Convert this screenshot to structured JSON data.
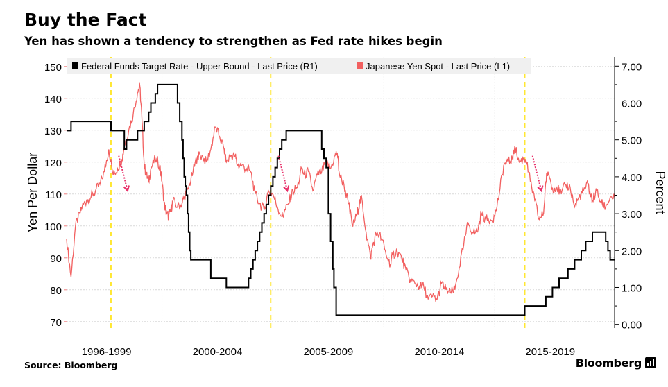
{
  "header": {
    "title": "Buy the Fact",
    "subtitle": "Yen has shown a tendency to strengthen as Fed rate hikes begin"
  },
  "footer": {
    "source": "Source: Bloomberg",
    "brand": "Bloomberg",
    "brand_icon": "bloomberg-terminal-icon"
  },
  "colors": {
    "fed_series": "#000000",
    "yen_series": "#f26060",
    "hike_marker": "#ffe733",
    "arrow": "#e8306a",
    "grid": "#d9d9d9",
    "legend_bg": "#f0f0f0"
  },
  "chart_data": {
    "type": "line",
    "x_range": [
      1995.3,
      2020.0
    ],
    "x_group_labels": [
      {
        "label": "1996-1999",
        "center": 1997.1
      },
      {
        "label": "2000-2004",
        "center": 2002.1
      },
      {
        "label": "2005-2009",
        "center": 2007.1
      },
      {
        "label": "2010-2014",
        "center": 2012.1
      },
      {
        "label": "2015-2019",
        "center": 2017.1
      }
    ],
    "y_left": {
      "label": "Yen Per Dollar",
      "range": [
        68,
        153
      ],
      "ticks": [
        "70",
        "80",
        "90",
        "100",
        "110",
        "120",
        "130",
        "140",
        "150"
      ]
    },
    "y_right": {
      "label": "Percent",
      "range": [
        -0.1,
        7.25
      ],
      "ticks": [
        "0.00",
        "1.00",
        "2.00",
        "3.00",
        "4.00",
        "5.00",
        "6.00",
        "7.00"
      ]
    },
    "legend": {
      "position": "top",
      "entries": [
        {
          "name": "Federal Funds Target Rate - Upper Bound - Last Price (R1)",
          "series": "fed"
        },
        {
          "name": "Japanese Yen Spot - Last Price (L1)",
          "series": "yen"
        }
      ]
    },
    "series": {
      "fed": {
        "name": "Federal Funds Target Rate - Upper Bound - Last Price (R1)",
        "axis": "right",
        "step": true,
        "points": [
          [
            1995.3,
            5.25
          ],
          [
            1995.5,
            5.5
          ],
          [
            1997.2,
            5.5
          ],
          [
            1997.3,
            5.25
          ],
          [
            1997.9,
            4.75
          ],
          [
            1998.0,
            5.0
          ],
          [
            1998.5,
            5.25
          ],
          [
            1998.8,
            5.5
          ],
          [
            1999.0,
            5.75
          ],
          [
            1999.1,
            6.0
          ],
          [
            1999.3,
            6.25
          ],
          [
            1999.4,
            6.5
          ],
          [
            2000.2,
            6.5
          ],
          [
            2000.3,
            6.0
          ],
          [
            2000.4,
            5.5
          ],
          [
            2000.5,
            5.0
          ],
          [
            2000.55,
            4.5
          ],
          [
            2000.6,
            4.0
          ],
          [
            2000.65,
            3.75
          ],
          [
            2000.7,
            3.5
          ],
          [
            2000.75,
            3.0
          ],
          [
            2000.8,
            2.5
          ],
          [
            2000.85,
            2.0
          ],
          [
            2000.9,
            1.75
          ],
          [
            2001.8,
            1.25
          ],
          [
            2002.5,
            1.0
          ],
          [
            2003.5,
            1.25
          ],
          [
            2003.6,
            1.5
          ],
          [
            2003.7,
            1.75
          ],
          [
            2003.8,
            2.0
          ],
          [
            2003.9,
            2.25
          ],
          [
            2004.0,
            2.5
          ],
          [
            2004.1,
            2.75
          ],
          [
            2004.2,
            3.0
          ],
          [
            2004.3,
            3.25
          ],
          [
            2004.4,
            3.5
          ],
          [
            2004.5,
            3.75
          ],
          [
            2004.6,
            4.0
          ],
          [
            2004.7,
            4.25
          ],
          [
            2004.8,
            4.5
          ],
          [
            2004.9,
            4.75
          ],
          [
            2005.0,
            5.0
          ],
          [
            2005.2,
            5.25
          ],
          [
            2006.7,
            5.25
          ],
          [
            2006.8,
            4.75
          ],
          [
            2006.9,
            4.5
          ],
          [
            2007.0,
            4.25
          ],
          [
            2007.1,
            3.0
          ],
          [
            2007.2,
            2.25
          ],
          [
            2007.3,
            1.5
          ],
          [
            2007.35,
            1.0
          ],
          [
            2007.45,
            0.25
          ],
          [
            2015.9,
            0.25
          ],
          [
            2015.95,
            0.5
          ],
          [
            2016.9,
            0.75
          ],
          [
            2017.2,
            1.0
          ],
          [
            2017.5,
            1.25
          ],
          [
            2017.9,
            1.5
          ],
          [
            2018.2,
            1.75
          ],
          [
            2018.5,
            2.0
          ],
          [
            2018.7,
            2.25
          ],
          [
            2019.0,
            2.5
          ],
          [
            2019.5,
            2.5
          ],
          [
            2019.6,
            2.25
          ],
          [
            2019.7,
            2.0
          ],
          [
            2019.8,
            1.75
          ],
          [
            2020.0,
            1.75
          ]
        ]
      },
      "yen": {
        "name": "Japanese Yen Spot - Last Price (L1)",
        "axis": "left",
        "points": [
          [
            1995.3,
            96
          ],
          [
            1995.5,
            84
          ],
          [
            1995.7,
            100
          ],
          [
            1995.9,
            104
          ],
          [
            1996.0,
            106
          ],
          [
            1996.2,
            108
          ],
          [
            1996.4,
            109
          ],
          [
            1996.6,
            111
          ],
          [
            1996.8,
            113
          ],
          [
            1997.0,
            117
          ],
          [
            1997.2,
            124
          ],
          [
            1997.4,
            116
          ],
          [
            1997.6,
            118
          ],
          [
            1997.8,
            121
          ],
          [
            1997.9,
            125
          ],
          [
            1998.1,
            130
          ],
          [
            1998.3,
            135
          ],
          [
            1998.5,
            142
          ],
          [
            1998.6,
            144
          ],
          [
            1998.7,
            133
          ],
          [
            1998.8,
            119
          ],
          [
            1998.9,
            116
          ],
          [
            1999.0,
            114
          ],
          [
            1999.1,
            118
          ],
          [
            1999.3,
            121
          ],
          [
            1999.5,
            119
          ],
          [
            1999.6,
            114
          ],
          [
            1999.7,
            107
          ],
          [
            1999.8,
            104
          ],
          [
            1999.9,
            103
          ],
          [
            2000.0,
            105
          ],
          [
            2000.1,
            108
          ],
          [
            2000.3,
            106
          ],
          [
            2000.5,
            107
          ],
          [
            2000.6,
            109
          ],
          [
            2000.8,
            112
          ],
          [
            2001.0,
            117
          ],
          [
            2001.2,
            122
          ],
          [
            2001.4,
            122
          ],
          [
            2001.6,
            120
          ],
          [
            2001.8,
            124
          ],
          [
            2002.0,
            131
          ],
          [
            2002.2,
            128
          ],
          [
            2002.4,
            124
          ],
          [
            2002.5,
            120
          ],
          [
            2002.7,
            122
          ],
          [
            2002.9,
            122
          ],
          [
            2003.0,
            119
          ],
          [
            2003.2,
            119
          ],
          [
            2003.4,
            118
          ],
          [
            2003.6,
            117
          ],
          [
            2003.8,
            110
          ],
          [
            2004.0,
            107
          ],
          [
            2004.2,
            105
          ],
          [
            2004.4,
            111
          ],
          [
            2004.6,
            110
          ],
          [
            2004.8,
            106
          ],
          [
            2005.0,
            103
          ],
          [
            2005.1,
            104
          ],
          [
            2005.3,
            107
          ],
          [
            2005.5,
            111
          ],
          [
            2005.7,
            112
          ],
          [
            2005.9,
            118
          ],
          [
            2006.0,
            116
          ],
          [
            2006.2,
            117
          ],
          [
            2006.4,
            111
          ],
          [
            2006.6,
            116
          ],
          [
            2006.8,
            117
          ],
          [
            2007.0,
            120
          ],
          [
            2007.2,
            118
          ],
          [
            2007.4,
            122
          ],
          [
            2007.5,
            123
          ],
          [
            2007.6,
            116
          ],
          [
            2007.8,
            113
          ],
          [
            2008.0,
            107
          ],
          [
            2008.2,
            100
          ],
          [
            2008.4,
            104
          ],
          [
            2008.5,
            107
          ],
          [
            2008.6,
            109
          ],
          [
            2008.8,
            98
          ],
          [
            2009.0,
            90
          ],
          [
            2009.1,
            94
          ],
          [
            2009.3,
            98
          ],
          [
            2009.5,
            96
          ],
          [
            2009.7,
            91
          ],
          [
            2009.9,
            88
          ],
          [
            2010.0,
            91
          ],
          [
            2010.2,
            92
          ],
          [
            2010.4,
            90
          ],
          [
            2010.6,
            86
          ],
          [
            2010.8,
            83
          ],
          [
            2011.0,
            82
          ],
          [
            2011.2,
            81
          ],
          [
            2011.4,
            81
          ],
          [
            2011.6,
            77
          ],
          [
            2011.8,
            78
          ],
          [
            2012.0,
            77
          ],
          [
            2012.2,
            82
          ],
          [
            2012.4,
            80
          ],
          [
            2012.6,
            79
          ],
          [
            2012.8,
            80
          ],
          [
            2013.0,
            87
          ],
          [
            2013.2,
            94
          ],
          [
            2013.4,
            101
          ],
          [
            2013.6,
            98
          ],
          [
            2013.8,
            98
          ],
          [
            2014.0,
            104
          ],
          [
            2014.2,
            102
          ],
          [
            2014.4,
            102
          ],
          [
            2014.6,
            103
          ],
          [
            2014.8,
            110
          ],
          [
            2015.0,
            119
          ],
          [
            2015.2,
            120
          ],
          [
            2015.4,
            121
          ],
          [
            2015.5,
            125
          ],
          [
            2015.7,
            120
          ],
          [
            2015.9,
            121
          ],
          [
            2016.0,
            121
          ],
          [
            2016.2,
            114
          ],
          [
            2016.4,
            108
          ],
          [
            2016.6,
            102
          ],
          [
            2016.8,
            104
          ],
          [
            2016.9,
            114
          ],
          [
            2017.0,
            117
          ],
          [
            2017.2,
            112
          ],
          [
            2017.4,
            112
          ],
          [
            2017.6,
            110
          ],
          [
            2017.8,
            113
          ],
          [
            2018.0,
            112
          ],
          [
            2018.2,
            106
          ],
          [
            2018.4,
            109
          ],
          [
            2018.6,
            111
          ],
          [
            2018.8,
            113
          ],
          [
            2018.9,
            110
          ],
          [
            2019.0,
            108
          ],
          [
            2019.2,
            111
          ],
          [
            2019.4,
            107
          ],
          [
            2019.6,
            106
          ],
          [
            2019.8,
            109
          ],
          [
            2020.0,
            109
          ]
        ]
      }
    },
    "annotations": [
      {
        "type": "vline",
        "x": 1997.3,
        "label": ""
      },
      {
        "type": "vline",
        "x": 2004.5,
        "label": ""
      },
      {
        "type": "vline",
        "x": 2015.95,
        "label": ""
      }
    ]
  }
}
